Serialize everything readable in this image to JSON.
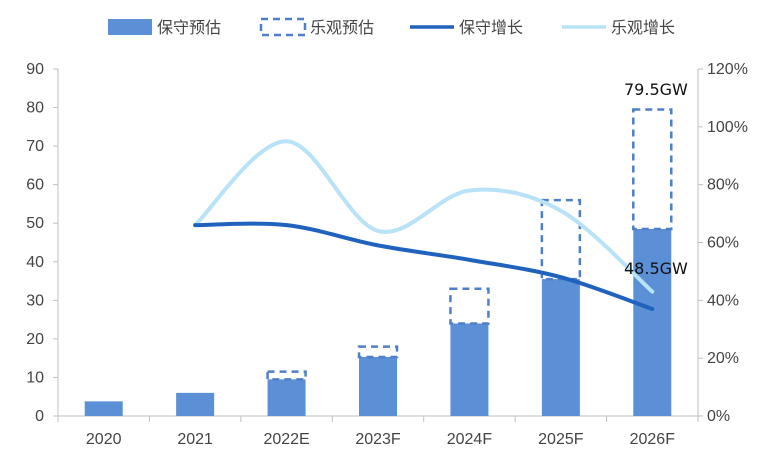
{
  "chart_data": {
    "type": "bar",
    "categories": [
      "2020",
      "2021",
      "2022E",
      "2023F",
      "2024F",
      "2025F",
      "2026F"
    ],
    "series": [
      {
        "name": "保守预估",
        "kind": "bar",
        "axis": "left",
        "values": [
          3.8,
          6,
          9.5,
          15.3,
          24,
          35.5,
          48.5
        ]
      },
      {
        "name": "乐观预估",
        "kind": "bar-dashed",
        "axis": "left",
        "values": [
          null,
          null,
          11.5,
          18,
          33,
          56,
          79.5
        ]
      },
      {
        "name": "保守增长",
        "kind": "line",
        "axis": "right",
        "values": [
          null,
          0.66,
          0.66,
          0.59,
          0.54,
          0.48,
          0.37
        ]
      },
      {
        "name": "乐观增长",
        "kind": "line",
        "axis": "right",
        "values": [
          null,
          0.66,
          0.95,
          0.64,
          0.78,
          0.71,
          0.43
        ]
      }
    ],
    "left_axis": {
      "ylim": [
        0,
        90
      ],
      "ticks": [
        "0",
        "10",
        "20",
        "30",
        "40",
        "50",
        "60",
        "70",
        "80",
        "90"
      ]
    },
    "right_axis": {
      "ylim": [
        0,
        1.2
      ],
      "ticks": [
        "0%",
        "20%",
        "40%",
        "60%",
        "80%",
        "100%",
        "120%"
      ]
    },
    "annotations": {
      "top_label": "79.5GW",
      "inner_label": "48.5GW"
    },
    "legend_placement": "top",
    "colors": {
      "conservative_bar": "#5b8fd6",
      "optimistic_bar": "#4f7fc8",
      "conservative_line": "#1f63bf",
      "optimistic_line": "#b8e2f7",
      "axis": "#bfbfbf",
      "text": "#444444"
    }
  }
}
